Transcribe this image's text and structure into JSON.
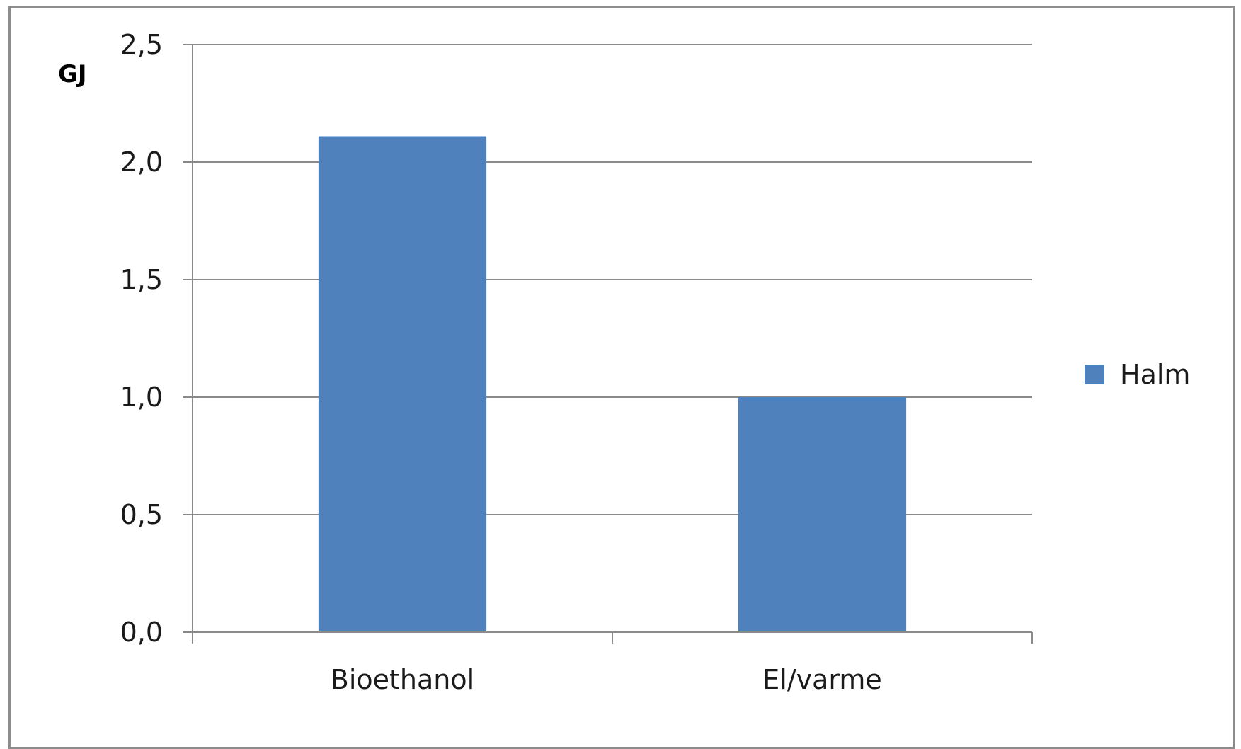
{
  "chart_data": {
    "type": "bar",
    "unit_label": "GJ",
    "categories": [
      "Bioethanol",
      "El/varme"
    ],
    "series": [
      {
        "name": "Halm",
        "values": [
          2.11,
          1.0
        ],
        "color": "#4f81bd"
      }
    ],
    "ylim": [
      0,
      2.5
    ],
    "yticks": [
      0,
      0.5,
      1.0,
      1.5,
      2.0,
      2.5
    ],
    "ytick_labels": [
      "0,0",
      "0,5",
      "1,0",
      "1,5",
      "2,0",
      "2,5"
    ],
    "grid": true,
    "legend_position": "right"
  }
}
